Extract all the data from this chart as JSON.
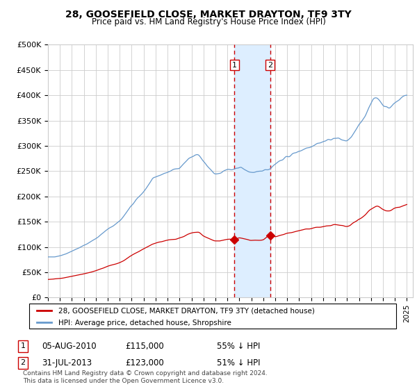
{
  "title": "28, GOOSEFIELD CLOSE, MARKET DRAYTON, TF9 3TY",
  "subtitle": "Price paid vs. HM Land Registry's House Price Index (HPI)",
  "ylabel_ticks": [
    "£0",
    "£50K",
    "£100K",
    "£150K",
    "£200K",
    "£250K",
    "£300K",
    "£350K",
    "£400K",
    "£450K",
    "£500K"
  ],
  "ytick_values": [
    0,
    50000,
    100000,
    150000,
    200000,
    250000,
    300000,
    350000,
    400000,
    450000,
    500000
  ],
  "ylim": [
    0,
    500000
  ],
  "xlim_start": 1995.0,
  "xlim_end": 2025.5,
  "sale1_date": 2010.59,
  "sale1_price": 115000,
  "sale1_label": "1",
  "sale1_info": "05-AUG-2010          £115,000          55% ↓ HPI",
  "sale2_date": 2013.58,
  "sale2_price": 123000,
  "sale2_label": "2",
  "sale2_info": "31-JUL-2013          £123,000          51% ↓ HPI",
  "legend_red": "28, GOOSEFIELD CLOSE, MARKET DRAYTON, TF9 3TY (detached house)",
  "legend_blue": "HPI: Average price, detached house, Shropshire",
  "footnote": "Contains HM Land Registry data © Crown copyright and database right 2024.\nThis data is licensed under the Open Government Licence v3.0.",
  "red_color": "#cc0000",
  "blue_color": "#6699cc",
  "shade_color": "#ddeeff",
  "vline_color": "#cc0000",
  "background_color": "#ffffff",
  "grid_color": "#cccccc",
  "title_fontsize": 10,
  "subtitle_fontsize": 9
}
